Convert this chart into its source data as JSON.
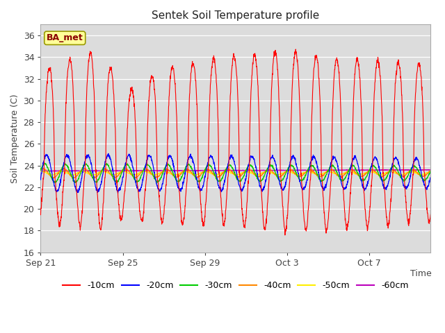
{
  "title": "Sentek Soil Temperature profile",
  "ylabel": "Soil Temperature (C)",
  "xlabel": "Time",
  "annotation": "BA_met",
  "x_tick_labels": [
    "Sep 21",
    "Sep 25",
    "Sep 29",
    "Oct 3",
    "Oct 7"
  ],
  "ylim": [
    16,
    37
  ],
  "yticks": [
    16,
    18,
    20,
    22,
    24,
    26,
    28,
    30,
    32,
    34,
    36
  ],
  "bg_color": "#dcdcdc",
  "fig_color": "#ffffff",
  "series_colors": {
    "-10cm": "#ff0000",
    "-20cm": "#0000ff",
    "-30cm": "#00cc00",
    "-40cm": "#ff8800",
    "-50cm": "#ffee00",
    "-60cm": "#bb00bb"
  },
  "n_days": 19,
  "points_per_day": 96,
  "base_temp": 23.3
}
